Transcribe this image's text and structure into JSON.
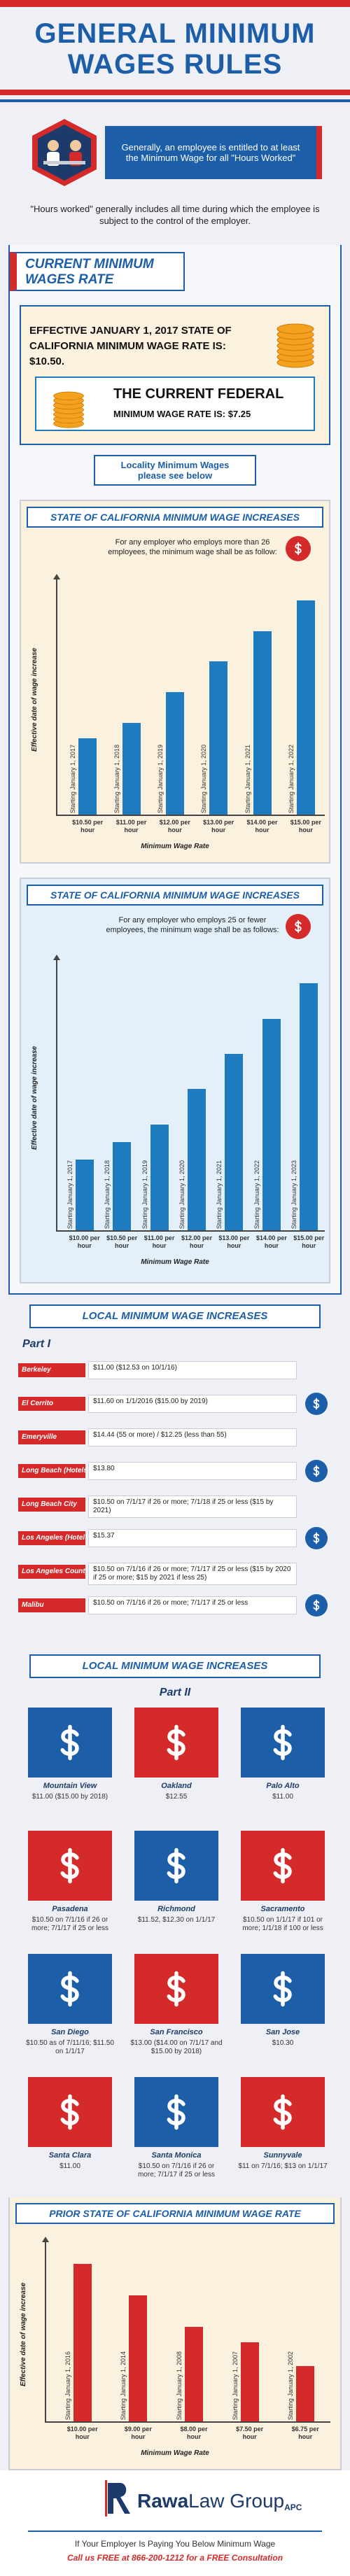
{
  "header": {
    "title": "GENERAL MINIMUM WAGES RULES"
  },
  "intro": {
    "callout": "Generally, an employee is entitled to at least the Minimum Wage for all \"Hours Worked\"",
    "note": "\"Hours worked\" generally includes all time during which the employee is subject to the control of the employer."
  },
  "current": {
    "banner": "CURRENT MINIMUM WAGES RATE",
    "state_rate": "EFFECTIVE JANUARY 1, 2017 STATE OF CALIFORNIA MINIMUM WAGE RATE IS: $10.50.",
    "federal_heading": "THE CURRENT FEDERAL",
    "federal_rate": "MINIMUM WAGE RATE IS: $7.25",
    "locality_note": "Locality Minimum Wages please see below"
  },
  "chart_data": [
    {
      "type": "bar",
      "title": "STATE OF CALIFORNIA  MINIMUM WAGE INCREASES",
      "subtitle": "For any employer who employs more than 26 employees, the minimum wage shall be as follow:",
      "ylabel": "Effective date of wage increase",
      "xlabel": "Minimum Wage Rate",
      "categories": [
        "Starting January 1, 2017",
        "Starting January 1, 2018",
        "Starting January 1, 2019",
        "Starting January 1, 2020",
        "Starting January 1, 2021",
        "Starting January 1, 2022"
      ],
      "values": [
        10.5,
        11,
        12,
        13,
        14,
        15
      ],
      "value_labels": [
        "$10.50 per hour",
        "$11.00 per hour",
        "$12.00 per hour",
        "$13.00 per hour",
        "$14.00 per hour",
        "$15.00 per hour"
      ],
      "color": "#1f7bc0",
      "ylim": [
        8,
        15.5
      ]
    },
    {
      "type": "bar",
      "title": "STATE OF CALIFORNIA MINIMUM WAGE INCREASES",
      "subtitle": "For any employer who employs 25 or fewer employees, the minimum wage shall be as follows:",
      "ylabel": "Effective date of wage increase",
      "xlabel": "Minimum Wage Rate",
      "categories": [
        "Starting January 1, 2017",
        "Starting January 1, 2018",
        "Starting January 1, 2019",
        "Starting January 1, 2020",
        "Starting January 1, 2021",
        "Starting January 1, 2022",
        "Starting January 1, 2023"
      ],
      "values": [
        10,
        10.5,
        11,
        12,
        13,
        14,
        15
      ],
      "value_labels": [
        "$10.00 per hour",
        "$10.50 per hour",
        "$11.00 per hour",
        "$12.00 per hour",
        "$13.00 per hour",
        "$14.00 per hour",
        "$15.00 per hour"
      ],
      "color": "#1f7bc0",
      "ylim": [
        8,
        15.5
      ]
    },
    {
      "type": "bar",
      "title": "PRIOR STATE OF CALIFORNIA MINIMUM WAGE RATE",
      "ylabel": "Effective date of wage increase",
      "xlabel": "Minimum Wage Rate",
      "categories": [
        "Starting January 1, 2016",
        "Starting January 1, 2014",
        "Starting January 1, 2008",
        "Starting January 1, 2007",
        "Starting January 1, 2002"
      ],
      "values": [
        10,
        9,
        8,
        7.5,
        6.75
      ],
      "value_labels": [
        "$10.00 per hour",
        "$9.00 per hour",
        "$8.00 per hour",
        "$7.50 per hour",
        "$6.75 per hour"
      ],
      "color": "#d42a2a",
      "ylim": [
        5,
        10.5
      ]
    }
  ],
  "local": {
    "heading": "LOCAL MINIMUM WAGE INCREASES",
    "part1": {
      "label": "Part I",
      "items": [
        {
          "city": "Berkeley",
          "wage": "$11.00 ($12.53 on 10/1/16)"
        },
        {
          "city": "El Cerrito",
          "wage": "$11.60 on 1/1/2016 ($15.00 by 2019)"
        },
        {
          "city": "Emeryville",
          "wage": "$14.44 (55 or more) / $12.25 (less than 55)"
        },
        {
          "city": "Long Beach (Hotels)",
          "wage": "$13.80"
        },
        {
          "city": "Long Beach City",
          "wage": "$10.50 on 7/1/17 if 26 or more; 7/1/18 if 25 or less ($15 by 2021)"
        },
        {
          "city": "Los Angeles (Hotels)",
          "wage": "$15.37"
        },
        {
          "city": "Los Angeles County",
          "wage": "$10.50 on 7/1/16 if 26 or more; 7/1/17 if 25 or less ($15 by 2020 if 25 or more; $15 by 2021 if less 25)"
        },
        {
          "city": "Malibu",
          "wage": "$10.50 on 7/1/16 if 26 or more; 7/1/17 if 25 or less"
        }
      ]
    },
    "part2": {
      "heading": "LOCAL MINIMUM WAGE INCREASES",
      "label": "Part II",
      "items": [
        {
          "city": "Mountain View",
          "wage": "$11.00 ($15.00 by 2018)"
        },
        {
          "city": "Oakland",
          "wage": "$12.55"
        },
        {
          "city": "Palo Alto",
          "wage": "$11.00"
        },
        {
          "city": "Pasadena",
          "wage": "$10.50 on 7/1/16 if 26 or more; 7/1/17 if 25 or less"
        },
        {
          "city": "Richmond",
          "wage": "$11.52, $12.30 on 1/1/17"
        },
        {
          "city": "Sacramento",
          "wage": "$10.50 on 1/1/17 if 101 or more; 1/1/18 if 100 or less"
        },
        {
          "city": "San Diego",
          "wage": "$10.50 as of 7/11/16; $11.50 on 1/1/17"
        },
        {
          "city": "San Francisco",
          "wage": "$13.00 ($14.00 on 7/1/17 and $15.00 by 2018)"
        },
        {
          "city": "San Jose",
          "wage": "$10.30"
        },
        {
          "city": "Santa Clara",
          "wage": "$11.00"
        },
        {
          "city": "Santa Monica",
          "wage": "$10.50 on 7/1/16 if 26 or more; 7/1/17 if 25 or less"
        },
        {
          "city": "Sunnyvale",
          "wage": "$11 on 7/1/16; $13 on 1/1/17"
        }
      ]
    }
  },
  "footer": {
    "brand": "Rawa",
    "brand2": "Law Group",
    "suffix": "APC",
    "line1": "If Your Employer Is Paying You Below Minimum Wage",
    "line2": "Call us FREE at 866-200-1212 for a FREE Consultation"
  }
}
